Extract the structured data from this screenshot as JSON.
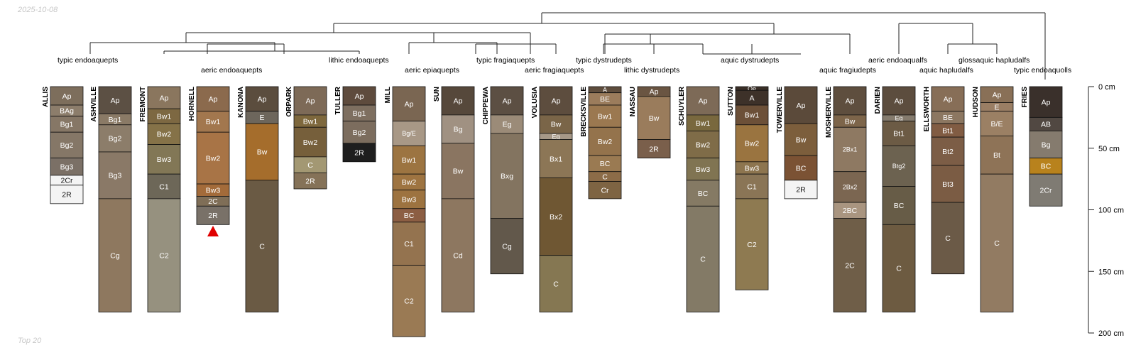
{
  "date": "2025-10-08",
  "footer": "Top 20",
  "depth_axis": {
    "unit": "cm",
    "max": 200,
    "ticks": [
      "0 cm",
      "50 cm",
      "100 cm",
      "150 cm",
      "200 cm"
    ],
    "tick_values": [
      0,
      50,
      100,
      150,
      200
    ]
  },
  "taxa_labels": [
    "typic endoaquepts",
    "aeric endoaquepts",
    "lithic endoaquepts",
    "aeric epiaquepts",
    "typic fragiaquepts",
    "aeric fragiaquepts",
    "typic dystrudepts",
    "lithic dystrudepts",
    "aquic dystrudepts",
    "aquic fragiudepts",
    "aeric endoaqualfs",
    "aquic hapludalfs",
    "glossaquic hapludalfs",
    "typic endoaquolls"
  ],
  "profiles": [
    {
      "name": "ALLIS",
      "horizons": [
        {
          "name": "Ap",
          "top": 0,
          "bottom": 15,
          "color": "#7d6e5c"
        },
        {
          "name": "BAg",
          "top": 15,
          "bottom": 24,
          "color": "#8c7d6b"
        },
        {
          "name": "Bg1",
          "top": 24,
          "bottom": 37,
          "color": "#867766"
        },
        {
          "name": "Bg2",
          "top": 37,
          "bottom": 58,
          "color": "#857767"
        },
        {
          "name": "Bg3",
          "top": 58,
          "bottom": 72,
          "color": "#7b7066"
        },
        {
          "name": "2Cr",
          "top": 72,
          "bottom": 80,
          "color": "#f4f4f4"
        },
        {
          "name": "2R",
          "top": 80,
          "bottom": 95,
          "color": "#f4f4f4"
        }
      ]
    },
    {
      "name": "ASHVILLE",
      "horizons": [
        {
          "name": "Ap",
          "top": 0,
          "bottom": 22,
          "color": "#5c5044"
        },
        {
          "name": "Bg1",
          "top": 22,
          "bottom": 31,
          "color": "#8a7a66"
        },
        {
          "name": "Bg2",
          "top": 31,
          "bottom": 53,
          "color": "#8c7d6a"
        },
        {
          "name": "Bg3",
          "top": 53,
          "bottom": 91,
          "color": "#8a7967"
        },
        {
          "name": "Cg",
          "top": 91,
          "bottom": 183,
          "color": "#8e785f"
        }
      ]
    },
    {
      "name": "FREMONT",
      "horizons": [
        {
          "name": "Ap",
          "top": 0,
          "bottom": 18,
          "color": "#8a765e"
        },
        {
          "name": "Bw1",
          "top": 18,
          "bottom": 30,
          "color": "#7d6842"
        },
        {
          "name": "Bw2",
          "top": 30,
          "bottom": 47,
          "color": "#857248"
        },
        {
          "name": "Bw3",
          "top": 47,
          "bottom": 71,
          "color": "#827756"
        },
        {
          "name": "C1",
          "top": 71,
          "bottom": 91,
          "color": "#6d6758"
        },
        {
          "name": "C2",
          "top": 91,
          "bottom": 183,
          "color": "#96917f"
        }
      ]
    },
    {
      "name": "HORNELL",
      "horizons": [
        {
          "name": "Ap",
          "top": 0,
          "bottom": 20,
          "color": "#8b6a4d"
        },
        {
          "name": "Bw1",
          "top": 20,
          "bottom": 37,
          "color": "#a2774e"
        },
        {
          "name": "Bw2",
          "top": 37,
          "bottom": 79,
          "color": "#a87446"
        },
        {
          "name": "Bw3",
          "top": 79,
          "bottom": 89,
          "color": "#a36b3a"
        },
        {
          "name": "2C",
          "top": 89,
          "bottom": 97,
          "color": "#7f6e57"
        },
        {
          "name": "2R",
          "top": 97,
          "bottom": 112,
          "color": "#797168"
        }
      ]
    },
    {
      "name": "KANONA",
      "horizons": [
        {
          "name": "Ap",
          "top": 0,
          "bottom": 20,
          "color": "#5b4d3e"
        },
        {
          "name": "E",
          "top": 20,
          "bottom": 30,
          "color": "#6d665c"
        },
        {
          "name": "Bw",
          "top": 30,
          "bottom": 76,
          "color": "#a56d2c"
        },
        {
          "name": "C",
          "top": 76,
          "bottom": 183,
          "color": "#6a5a44"
        }
      ]
    },
    {
      "name": "ORPARK",
      "horizons": [
        {
          "name": "Ap",
          "top": 0,
          "bottom": 23,
          "color": "#7d6a57"
        },
        {
          "name": "Bw1",
          "top": 23,
          "bottom": 33,
          "color": "#7e683d"
        },
        {
          "name": "Bw2",
          "top": 33,
          "bottom": 57,
          "color": "#765f3b"
        },
        {
          "name": "C",
          "top": 57,
          "bottom": 70,
          "color": "#a39873"
        },
        {
          "name": "2R",
          "top": 70,
          "bottom": 83,
          "color": "#857258"
        }
      ]
    },
    {
      "name": "TULLER",
      "horizons": [
        {
          "name": "Ap",
          "top": 0,
          "bottom": 15,
          "color": "#5e4b3d"
        },
        {
          "name": "Bg1",
          "top": 15,
          "bottom": 28,
          "color": "#7e6f60"
        },
        {
          "name": "Bg2",
          "top": 28,
          "bottom": 46,
          "color": "#7c6d5e"
        },
        {
          "name": "2R",
          "top": 46,
          "bottom": 61,
          "color": "#1e1e1e"
        }
      ]
    },
    {
      "name": "MILL",
      "horizons": [
        {
          "name": "Ap",
          "top": 0,
          "bottom": 28,
          "color": "#7a6652"
        },
        {
          "name": "Bg/E",
          "top": 28,
          "bottom": 48,
          "color": "#a89886"
        },
        {
          "name": "Bw1",
          "top": 48,
          "bottom": 71,
          "color": "#9c7441"
        },
        {
          "name": "Bw2",
          "top": 71,
          "bottom": 84,
          "color": "#9e7441"
        },
        {
          "name": "Bw3",
          "top": 84,
          "bottom": 99,
          "color": "#9d7340"
        },
        {
          "name": "BC",
          "top": 99,
          "bottom": 110,
          "color": "#8c5e43"
        },
        {
          "name": "C1",
          "top": 110,
          "bottom": 145,
          "color": "#94734f"
        },
        {
          "name": "C2",
          "top": 145,
          "bottom": 203,
          "color": "#9a7a54"
        }
      ]
    },
    {
      "name": "SUN",
      "horizons": [
        {
          "name": "Ap",
          "top": 0,
          "bottom": 23,
          "color": "#56483b"
        },
        {
          "name": "Bg",
          "top": 23,
          "bottom": 46,
          "color": "#a09182"
        },
        {
          "name": "Bw",
          "top": 46,
          "bottom": 91,
          "color": "#8a7561"
        },
        {
          "name": "Cd",
          "top": 91,
          "bottom": 183,
          "color": "#8d7760"
        }
      ]
    },
    {
      "name": "CHIPPEWA",
      "horizons": [
        {
          "name": "Ap",
          "top": 0,
          "bottom": 23,
          "color": "#5c4f43"
        },
        {
          "name": "Eg",
          "top": 23,
          "bottom": 38,
          "color": "#9b8b78"
        },
        {
          "name": "Bxg",
          "top": 38,
          "bottom": 107,
          "color": "#837460"
        },
        {
          "name": "Cg",
          "top": 107,
          "bottom": 152,
          "color": "#62584b"
        }
      ]
    },
    {
      "name": "VOLUSIA",
      "horizons": [
        {
          "name": "Ap",
          "top": 0,
          "bottom": 23,
          "color": "#5d4d3e"
        },
        {
          "name": "Bw",
          "top": 23,
          "bottom": 38,
          "color": "#7a6548"
        },
        {
          "name": "Eg",
          "top": 38,
          "bottom": 43,
          "color": "#a69887"
        },
        {
          "name": "Bx1",
          "top": 43,
          "bottom": 74,
          "color": "#8c7656"
        },
        {
          "name": "Bx2",
          "top": 74,
          "bottom": 137,
          "color": "#6f5733"
        },
        {
          "name": "C",
          "top": 137,
          "bottom": 183,
          "color": "#857752"
        }
      ]
    },
    {
      "name": "BRECKSVILLE",
      "horizons": [
        {
          "name": "A",
          "top": 0,
          "bottom": 5,
          "color": "#5e4d3d"
        },
        {
          "name": "BE",
          "top": 5,
          "bottom": 15,
          "color": "#9b7c5c"
        },
        {
          "name": "Bw1",
          "top": 15,
          "bottom": 33,
          "color": "#9b7850"
        },
        {
          "name": "Bw2",
          "top": 33,
          "bottom": 56,
          "color": "#94734c"
        },
        {
          "name": "BC",
          "top": 56,
          "bottom": 69,
          "color": "#9a7a52"
        },
        {
          "name": "C",
          "top": 69,
          "bottom": 77,
          "color": "#8c6c48"
        },
        {
          "name": "Cr",
          "top": 77,
          "bottom": 91,
          "color": "#7e6443"
        }
      ]
    },
    {
      "name": "NASSAU",
      "horizons": [
        {
          "name": "Ap",
          "top": 0,
          "bottom": 8,
          "color": "#6a5542"
        },
        {
          "name": "Bw",
          "top": 8,
          "bottom": 43,
          "color": "#9a7c5c"
        },
        {
          "name": "2R",
          "top": 43,
          "bottom": 58,
          "color": "#7a5f4b"
        }
      ]
    },
    {
      "name": "SCHUYLER",
      "horizons": [
        {
          "name": "Ap",
          "top": 0,
          "bottom": 23,
          "color": "#7d6a57"
        },
        {
          "name": "Bw1",
          "top": 23,
          "bottom": 36,
          "color": "#79683e"
        },
        {
          "name": "Bw2",
          "top": 36,
          "bottom": 58,
          "color": "#7f6c48"
        },
        {
          "name": "Bw3",
          "top": 58,
          "bottom": 76,
          "color": "#807452"
        },
        {
          "name": "BC",
          "top": 76,
          "bottom": 97,
          "color": "#857a64"
        },
        {
          "name": "C",
          "top": 97,
          "bottom": 183,
          "color": "#837a66"
        }
      ]
    },
    {
      "name": "SUTTON",
      "horizons": [
        {
          "name": "Oe",
          "top": 0,
          "bottom": 3,
          "color": "#3a2f27"
        },
        {
          "name": "A",
          "top": 3,
          "bottom": 15,
          "color": "#3d3129"
        },
        {
          "name": "Bw1",
          "top": 15,
          "bottom": 31,
          "color": "#6c5038"
        },
        {
          "name": "Bw2",
          "top": 31,
          "bottom": 61,
          "color": "#9a7440"
        },
        {
          "name": "Bw3",
          "top": 61,
          "bottom": 71,
          "color": "#8d754f"
        },
        {
          "name": "C1",
          "top": 71,
          "bottom": 91,
          "color": "#8a7556"
        },
        {
          "name": "C2",
          "top": 91,
          "bottom": 165,
          "color": "#8e7a51"
        }
      ]
    },
    {
      "name": "TOWERVILLE",
      "horizons": [
        {
          "name": "Ap",
          "top": 0,
          "bottom": 30,
          "color": "#5b4a3a"
        },
        {
          "name": "Bw",
          "top": 30,
          "bottom": 56,
          "color": "#7c5e3c"
        },
        {
          "name": "BC",
          "top": 56,
          "bottom": 76,
          "color": "#7b5234"
        },
        {
          "name": "2R",
          "top": 76,
          "bottom": 91,
          "color": "#f4f4f4"
        }
      ]
    },
    {
      "name": "MOSHERVILLE",
      "horizons": [
        {
          "name": "Ap",
          "top": 0,
          "bottom": 23,
          "color": "#5e4e3e"
        },
        {
          "name": "Bw",
          "top": 23,
          "bottom": 33,
          "color": "#7d654a"
        },
        {
          "name": "2Bx1",
          "top": 33,
          "bottom": 69,
          "color": "#8e7962"
        },
        {
          "name": "2Bx2",
          "top": 69,
          "bottom": 94,
          "color": "#7b6651"
        },
        {
          "name": "2BC",
          "top": 94,
          "bottom": 107,
          "color": "#a99580"
        },
        {
          "name": "2C",
          "top": 107,
          "bottom": 183,
          "color": "#6f5e48"
        }
      ]
    },
    {
      "name": "DARIEN",
      "horizons": [
        {
          "name": "Ap",
          "top": 0,
          "bottom": 23,
          "color": "#5c4d3e"
        },
        {
          "name": "Eg",
          "top": 23,
          "bottom": 28,
          "color": "#857b6d"
        },
        {
          "name": "Bt1",
          "top": 28,
          "bottom": 48,
          "color": "#6c5b45"
        },
        {
          "name": "Btg2",
          "top": 48,
          "bottom": 81,
          "color": "#6c6250"
        },
        {
          "name": "BC",
          "top": 81,
          "bottom": 112,
          "color": "#675c47"
        },
        {
          "name": "C",
          "top": 112,
          "bottom": 183,
          "color": "#6d5b41"
        }
      ]
    },
    {
      "name": "ELLSWORTH",
      "horizons": [
        {
          "name": "Ap",
          "top": 0,
          "bottom": 20,
          "color": "#876e57"
        },
        {
          "name": "BE",
          "top": 20,
          "bottom": 30,
          "color": "#8c7761"
        },
        {
          "name": "Bt1",
          "top": 30,
          "bottom": 41,
          "color": "#815c43"
        },
        {
          "name": "Bt2",
          "top": 41,
          "bottom": 64,
          "color": "#7c5d46"
        },
        {
          "name": "Bt3",
          "top": 64,
          "bottom": 94,
          "color": "#7b5c44"
        },
        {
          "name": "C",
          "top": 94,
          "bottom": 152,
          "color": "#6b5a47"
        }
      ]
    },
    {
      "name": "HUDSON",
      "horizons": [
        {
          "name": "Ap",
          "top": 0,
          "bottom": 13,
          "color": "#897057"
        },
        {
          "name": "E",
          "top": 13,
          "bottom": 20,
          "color": "#9a7e64"
        },
        {
          "name": "B/E",
          "top": 20,
          "bottom": 40,
          "color": "#9b8064"
        },
        {
          "name": "Bt",
          "top": 40,
          "bottom": 71,
          "color": "#8e7357"
        },
        {
          "name": "C",
          "top": 71,
          "bottom": 183,
          "color": "#927b62"
        }
      ]
    },
    {
      "name": "FRIES",
      "horizons": [
        {
          "name": "Ap",
          "top": 0,
          "bottom": 25,
          "color": "#3a302b"
        },
        {
          "name": "AB",
          "top": 25,
          "bottom": 36,
          "color": "#514842"
        },
        {
          "name": "Bg",
          "top": 36,
          "bottom": 58,
          "color": "#857b6e"
        },
        {
          "name": "BC",
          "top": 58,
          "bottom": 71,
          "color": "#b8821d"
        },
        {
          "name": "2Cr",
          "top": 71,
          "bottom": 97,
          "color": "#7f7b73"
        }
      ]
    }
  ]
}
